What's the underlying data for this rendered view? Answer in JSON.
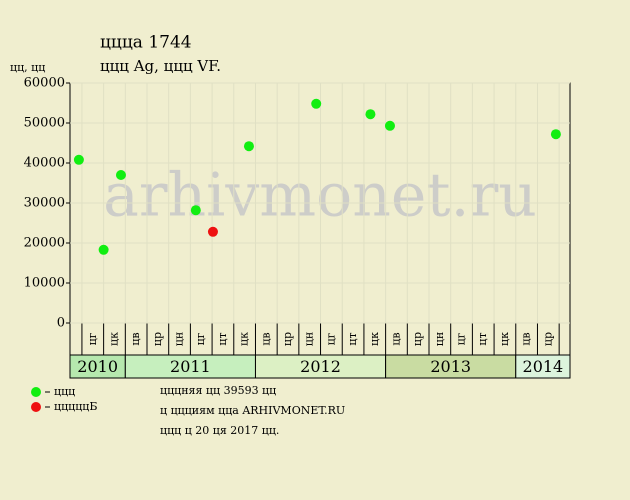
{
  "chart_data": {
    "type": "scatter",
    "title": "ццца 1744",
    "subtitle": "ццц Ag, ццц VF.",
    "y_label": "цц, цц",
    "watermark": "arhivmonet.ru",
    "years": [
      {
        "year": "2010",
        "color": "#b6e8ae",
        "months": [
          "цг",
          "цк"
        ]
      },
      {
        "year": "2011",
        "color": "#c6efbe",
        "months": [
          "цв",
          "цр",
          "цн",
          "цг",
          "цт",
          "цк"
        ]
      },
      {
        "year": "2012",
        "color": "#dcf0c4",
        "months": [
          "цв",
          "цр",
          "цн",
          "цг",
          "цт",
          "цк"
        ]
      },
      {
        "year": "2013",
        "color": "#c9dca2",
        "months": [
          "цв",
          "цр",
          "цн",
          "цг",
          "цт",
          "цк"
        ]
      },
      {
        "year": "2014",
        "color": "#dcf4dc",
        "months": [
          "цв",
          "цр"
        ]
      }
    ],
    "xlim": [
      -0.55,
      22.5
    ],
    "ylim": [
      0,
      60000
    ],
    "yticks": [
      0,
      10000,
      20000,
      30000,
      40000,
      50000,
      60000
    ],
    "series": [
      {
        "name": "ццц",
        "color": "#11ee11",
        "x": [
          -0.14,
          1.0,
          1.8,
          5.25,
          7.7,
          10.8,
          13.3,
          14.2,
          21.85
        ],
        "values": [
          40800,
          18300,
          37000,
          28200,
          44200,
          54800,
          52200,
          49300,
          47200
        ]
      },
      {
        "name": "цццццБ",
        "color": "#ee1111",
        "x": [
          6.04
        ],
        "values": [
          22800
        ]
      }
    ],
    "notes": [
      "цццняя цц 39593 цц",
      "ц ццциям цца ARHIVMONET.RU",
      "ццц ц 20 ця 2017 цц."
    ]
  }
}
